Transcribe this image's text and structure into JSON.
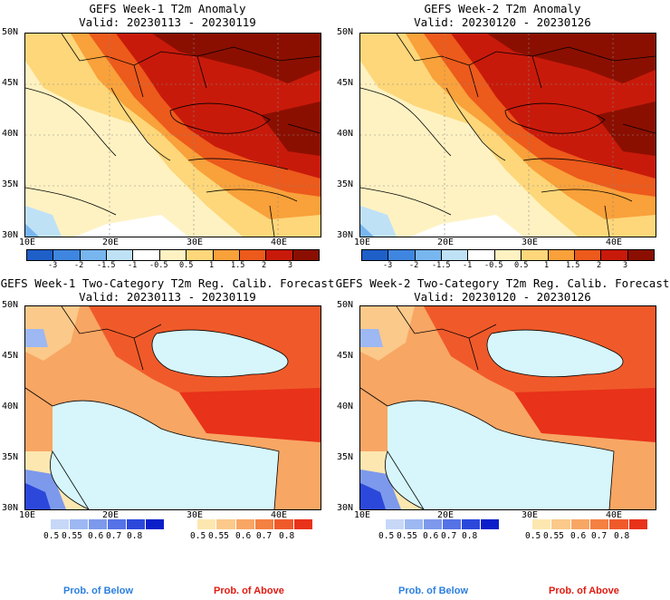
{
  "panels": [
    {
      "title1": "GEFS Week-1 T2m Anomaly",
      "title2": "Valid: 20230113 - 20230119"
    },
    {
      "title1": "GEFS Week-2 T2m Anomaly",
      "title2": "Valid: 20230120 - 20230126"
    },
    {
      "title1": "GEFS Week-1 Two-Category T2m Reg. Calib. Forecast",
      "title2": "Valid: 20230113 - 20230119"
    },
    {
      "title1": "GEFS Week-2 Two-Category T2m Reg. Calib. Forecast",
      "title2": "Valid: 20230120 - 20230126"
    }
  ],
  "lat_labels": [
    "50N",
    "45N",
    "40N",
    "35N",
    "30N"
  ],
  "lon_labels": [
    "10E",
    "20E",
    "30E",
    "40E"
  ],
  "anomaly_colorbar": {
    "labels": [
      "-3",
      "-2",
      "-1.5",
      "-1",
      "-0.5",
      "0.5",
      "1",
      "1.5",
      "2",
      "3"
    ],
    "colors": [
      "#1f5fc8",
      "#3f86e0",
      "#78b6ef",
      "#bfe1f6",
      "#ffffff",
      "#fff2c2",
      "#fdd77a",
      "#f9a13a",
      "#ec5a1c",
      "#c81a0a",
      "#8b0f00"
    ]
  },
  "prob_below": {
    "labels": [
      "0.5",
      "0.55",
      "0.6",
      "0.7",
      "0.8"
    ],
    "colors": [
      "#c7d7f7",
      "#9db8f2",
      "#7d99ec",
      "#5572e6",
      "#2b48db",
      "#0a1fc9"
    ]
  },
  "prob_above": {
    "labels": [
      "0.5",
      "0.55",
      "0.6",
      "0.7",
      "0.8"
    ],
    "colors": [
      "#fde7b0",
      "#fbc98a",
      "#f8a664",
      "#f48042",
      "#f05a2a",
      "#e8321a"
    ]
  },
  "legend_text": {
    "below": "Prob. of Below",
    "above": "Prob. of Above"
  },
  "colors": {
    "below_text": "#2b7fe0",
    "above_text": "#e01a10",
    "sea": "#d6f6fb"
  }
}
